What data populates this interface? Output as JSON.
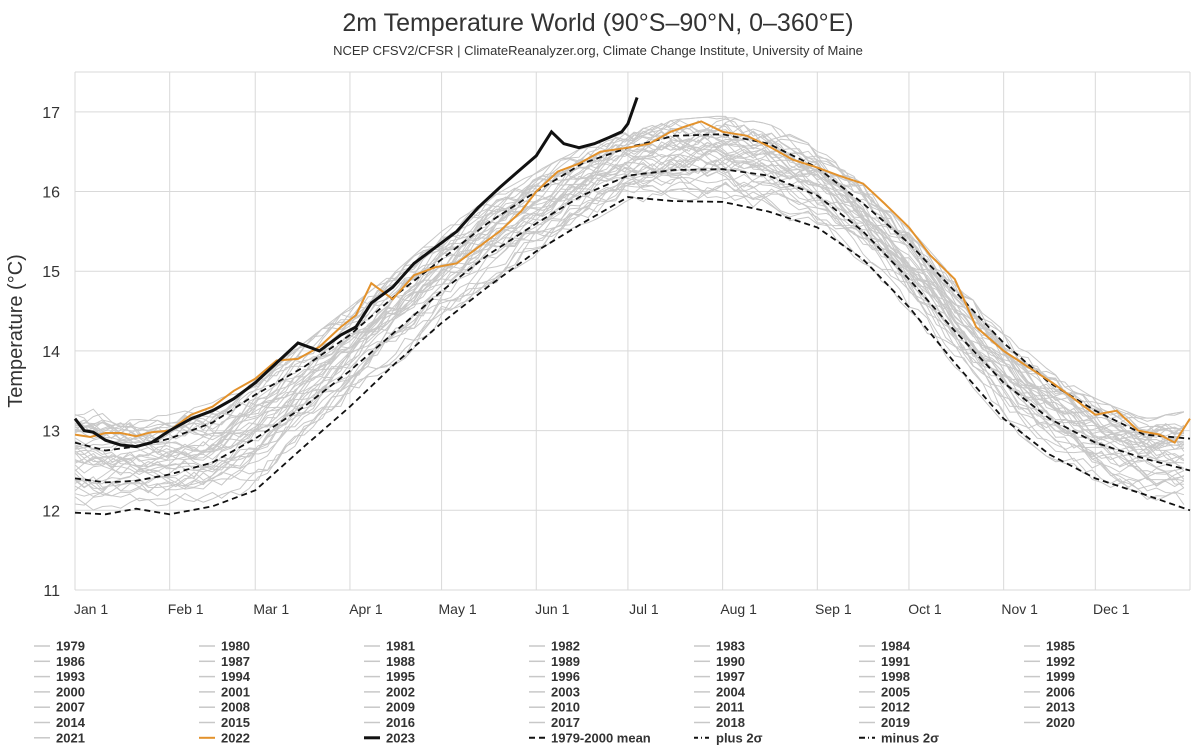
{
  "chart_data": {
    "type": "line",
    "title": "2m Temperature World (90°S–90°N, 0–360°E)",
    "subtitle": "NCEP CFSV2/CFSR | ClimateReanalyzer.org, Climate Change Institute, University of Maine",
    "xlabel": "",
    "ylabel": "Temperature (°C)",
    "ylim": [
      11,
      17.5
    ],
    "yticks": [
      11,
      12,
      13,
      14,
      15,
      16,
      17
    ],
    "xlim": [
      0,
      365
    ],
    "xticks": [
      {
        "label": "Jan 1",
        "day": 0
      },
      {
        "label": "Feb 1",
        "day": 31
      },
      {
        "label": "Mar 1",
        "day": 59
      },
      {
        "label": "Apr 1",
        "day": 90
      },
      {
        "label": "May 1",
        "day": 120
      },
      {
        "label": "Jun 1",
        "day": 151
      },
      {
        "label": "Jul 1",
        "day": 181
      },
      {
        "label": "Aug 1",
        "day": 212
      },
      {
        "label": "Sep 1",
        "day": 243
      },
      {
        "label": "Oct 1",
        "day": 273
      },
      {
        "label": "Nov 1",
        "day": 304
      },
      {
        "label": "Dec 1",
        "day": 334
      }
    ],
    "grid": true,
    "legend_position": "bottom",
    "colors": {
      "historical": "#c8c8c8",
      "y2022": "#e3922c",
      "y2023": "#111111",
      "mean": "#111111",
      "sigma": "#111111"
    },
    "legend": [
      "1979",
      "1980",
      "1981",
      "1982",
      "1983",
      "1984",
      "1985",
      "1986",
      "1987",
      "1988",
      "1989",
      "1990",
      "1991",
      "1992",
      "1993",
      "1994",
      "1995",
      "1996",
      "1997",
      "1998",
      "1999",
      "2000",
      "2001",
      "2002",
      "2003",
      "2004",
      "2005",
      "2006",
      "2007",
      "2008",
      "2009",
      "2010",
      "2011",
      "2012",
      "2013",
      "2014",
      "2015",
      "2016",
      "2017",
      "2018",
      "2019",
      "2020",
      "2021",
      "2022",
      "2023",
      "1979-2000 mean",
      "plus 2σ",
      "minus 2σ"
    ],
    "series": [
      {
        "name": "1979-2000 mean",
        "style": "dashed",
        "x": [
          0,
          10,
          20,
          31,
          45,
          59,
          75,
          90,
          105,
          120,
          135,
          151,
          166,
          181,
          196,
          212,
          227,
          243,
          258,
          273,
          288,
          304,
          319,
          334,
          350,
          365
        ],
        "y": [
          12.4,
          12.35,
          12.37,
          12.45,
          12.6,
          12.9,
          13.3,
          13.75,
          14.25,
          14.75,
          15.2,
          15.6,
          15.95,
          16.2,
          16.27,
          16.28,
          16.2,
          15.95,
          15.5,
          14.9,
          14.25,
          13.6,
          13.15,
          12.85,
          12.65,
          12.5
        ]
      },
      {
        "name": "plus 2σ",
        "style": "dashed",
        "x": [
          0,
          10,
          20,
          31,
          45,
          59,
          75,
          90,
          105,
          120,
          135,
          151,
          166,
          181,
          196,
          212,
          227,
          243,
          258,
          273,
          288,
          304,
          319,
          334,
          350,
          365
        ],
        "y": [
          12.85,
          12.75,
          12.8,
          12.9,
          13.1,
          13.45,
          13.8,
          14.2,
          14.7,
          15.15,
          15.6,
          16.0,
          16.35,
          16.55,
          16.7,
          16.72,
          16.6,
          16.3,
          15.85,
          15.35,
          14.75,
          14.1,
          13.6,
          13.25,
          12.95,
          12.9
        ]
      },
      {
        "name": "minus 2σ",
        "style": "dashed",
        "x": [
          0,
          10,
          20,
          31,
          45,
          59,
          75,
          90,
          105,
          120,
          135,
          151,
          166,
          181,
          196,
          212,
          227,
          243,
          258,
          273,
          288,
          304,
          319,
          334,
          350,
          365
        ],
        "y": [
          11.97,
          11.95,
          12.02,
          11.95,
          12.05,
          12.25,
          12.8,
          13.3,
          13.85,
          14.35,
          14.8,
          15.25,
          15.6,
          15.93,
          15.88,
          15.87,
          15.75,
          15.55,
          15.15,
          14.55,
          13.85,
          13.15,
          12.7,
          12.4,
          12.2,
          12.0
        ]
      },
      {
        "name": "2022",
        "x": [
          0,
          5,
          10,
          15,
          20,
          25,
          31,
          38,
          45,
          52,
          59,
          66,
          73,
          80,
          87,
          92,
          97,
          104,
          111,
          118,
          125,
          132,
          139,
          146,
          151,
          158,
          165,
          172,
          181,
          188,
          195,
          200,
          205,
          212,
          220,
          228,
          235,
          243,
          250,
          258,
          265,
          273,
          280,
          288,
          295,
          304,
          312,
          320,
          327,
          334,
          341,
          348,
          355,
          360,
          365
        ],
        "y": [
          12.95,
          12.92,
          12.97,
          12.97,
          12.93,
          12.98,
          13.0,
          13.2,
          13.3,
          13.5,
          13.65,
          13.88,
          13.9,
          14.05,
          14.3,
          14.45,
          14.85,
          14.65,
          14.95,
          15.05,
          15.1,
          15.3,
          15.5,
          15.75,
          16.0,
          16.25,
          16.35,
          16.5,
          16.55,
          16.6,
          16.75,
          16.82,
          16.88,
          16.75,
          16.7,
          16.55,
          16.4,
          16.3,
          16.2,
          16.1,
          15.85,
          15.55,
          15.2,
          14.9,
          14.3,
          14.0,
          13.8,
          13.6,
          13.4,
          13.2,
          13.25,
          13.0,
          12.95,
          12.85,
          13.15
        ]
      },
      {
        "name": "2023",
        "x": [
          0,
          3,
          6,
          10,
          15,
          20,
          25,
          31,
          38,
          45,
          52,
          59,
          66,
          73,
          80,
          87,
          92,
          97,
          104,
          111,
          118,
          125,
          132,
          139,
          145,
          151,
          156,
          160,
          165,
          170,
          175,
          179,
          181,
          184
        ],
        "y": [
          13.15,
          13.0,
          12.98,
          12.88,
          12.82,
          12.8,
          12.85,
          13.0,
          13.15,
          13.25,
          13.4,
          13.6,
          13.85,
          14.1,
          14.0,
          14.2,
          14.3,
          14.6,
          14.8,
          15.1,
          15.3,
          15.5,
          15.8,
          16.05,
          16.25,
          16.45,
          16.75,
          16.6,
          16.55,
          16.6,
          16.68,
          16.75,
          16.85,
          17.18
        ]
      },
      {
        "name": "historical (1979-2021)",
        "style": "band",
        "x": [
          0,
          10,
          20,
          31,
          45,
          59,
          75,
          90,
          105,
          120,
          135,
          151,
          166,
          181,
          196,
          212,
          227,
          243,
          258,
          273,
          288,
          304,
          319,
          334,
          350,
          365
        ],
        "y_low": [
          12.0,
          11.95,
          12.0,
          11.95,
          12.05,
          12.25,
          12.8,
          13.3,
          13.85,
          14.35,
          14.8,
          15.25,
          15.6,
          15.93,
          15.88,
          15.87,
          15.75,
          15.55,
          15.15,
          14.55,
          13.85,
          13.15,
          12.7,
          12.4,
          12.2,
          12.0
        ],
        "y_high": [
          13.25,
          13.2,
          13.15,
          13.15,
          13.3,
          13.6,
          14.05,
          14.5,
          14.95,
          15.45,
          15.85,
          16.2,
          16.5,
          16.7,
          16.85,
          16.9,
          16.8,
          16.5,
          16.05,
          15.5,
          14.85,
          14.2,
          13.7,
          13.35,
          13.1,
          13.2
        ]
      }
    ]
  }
}
